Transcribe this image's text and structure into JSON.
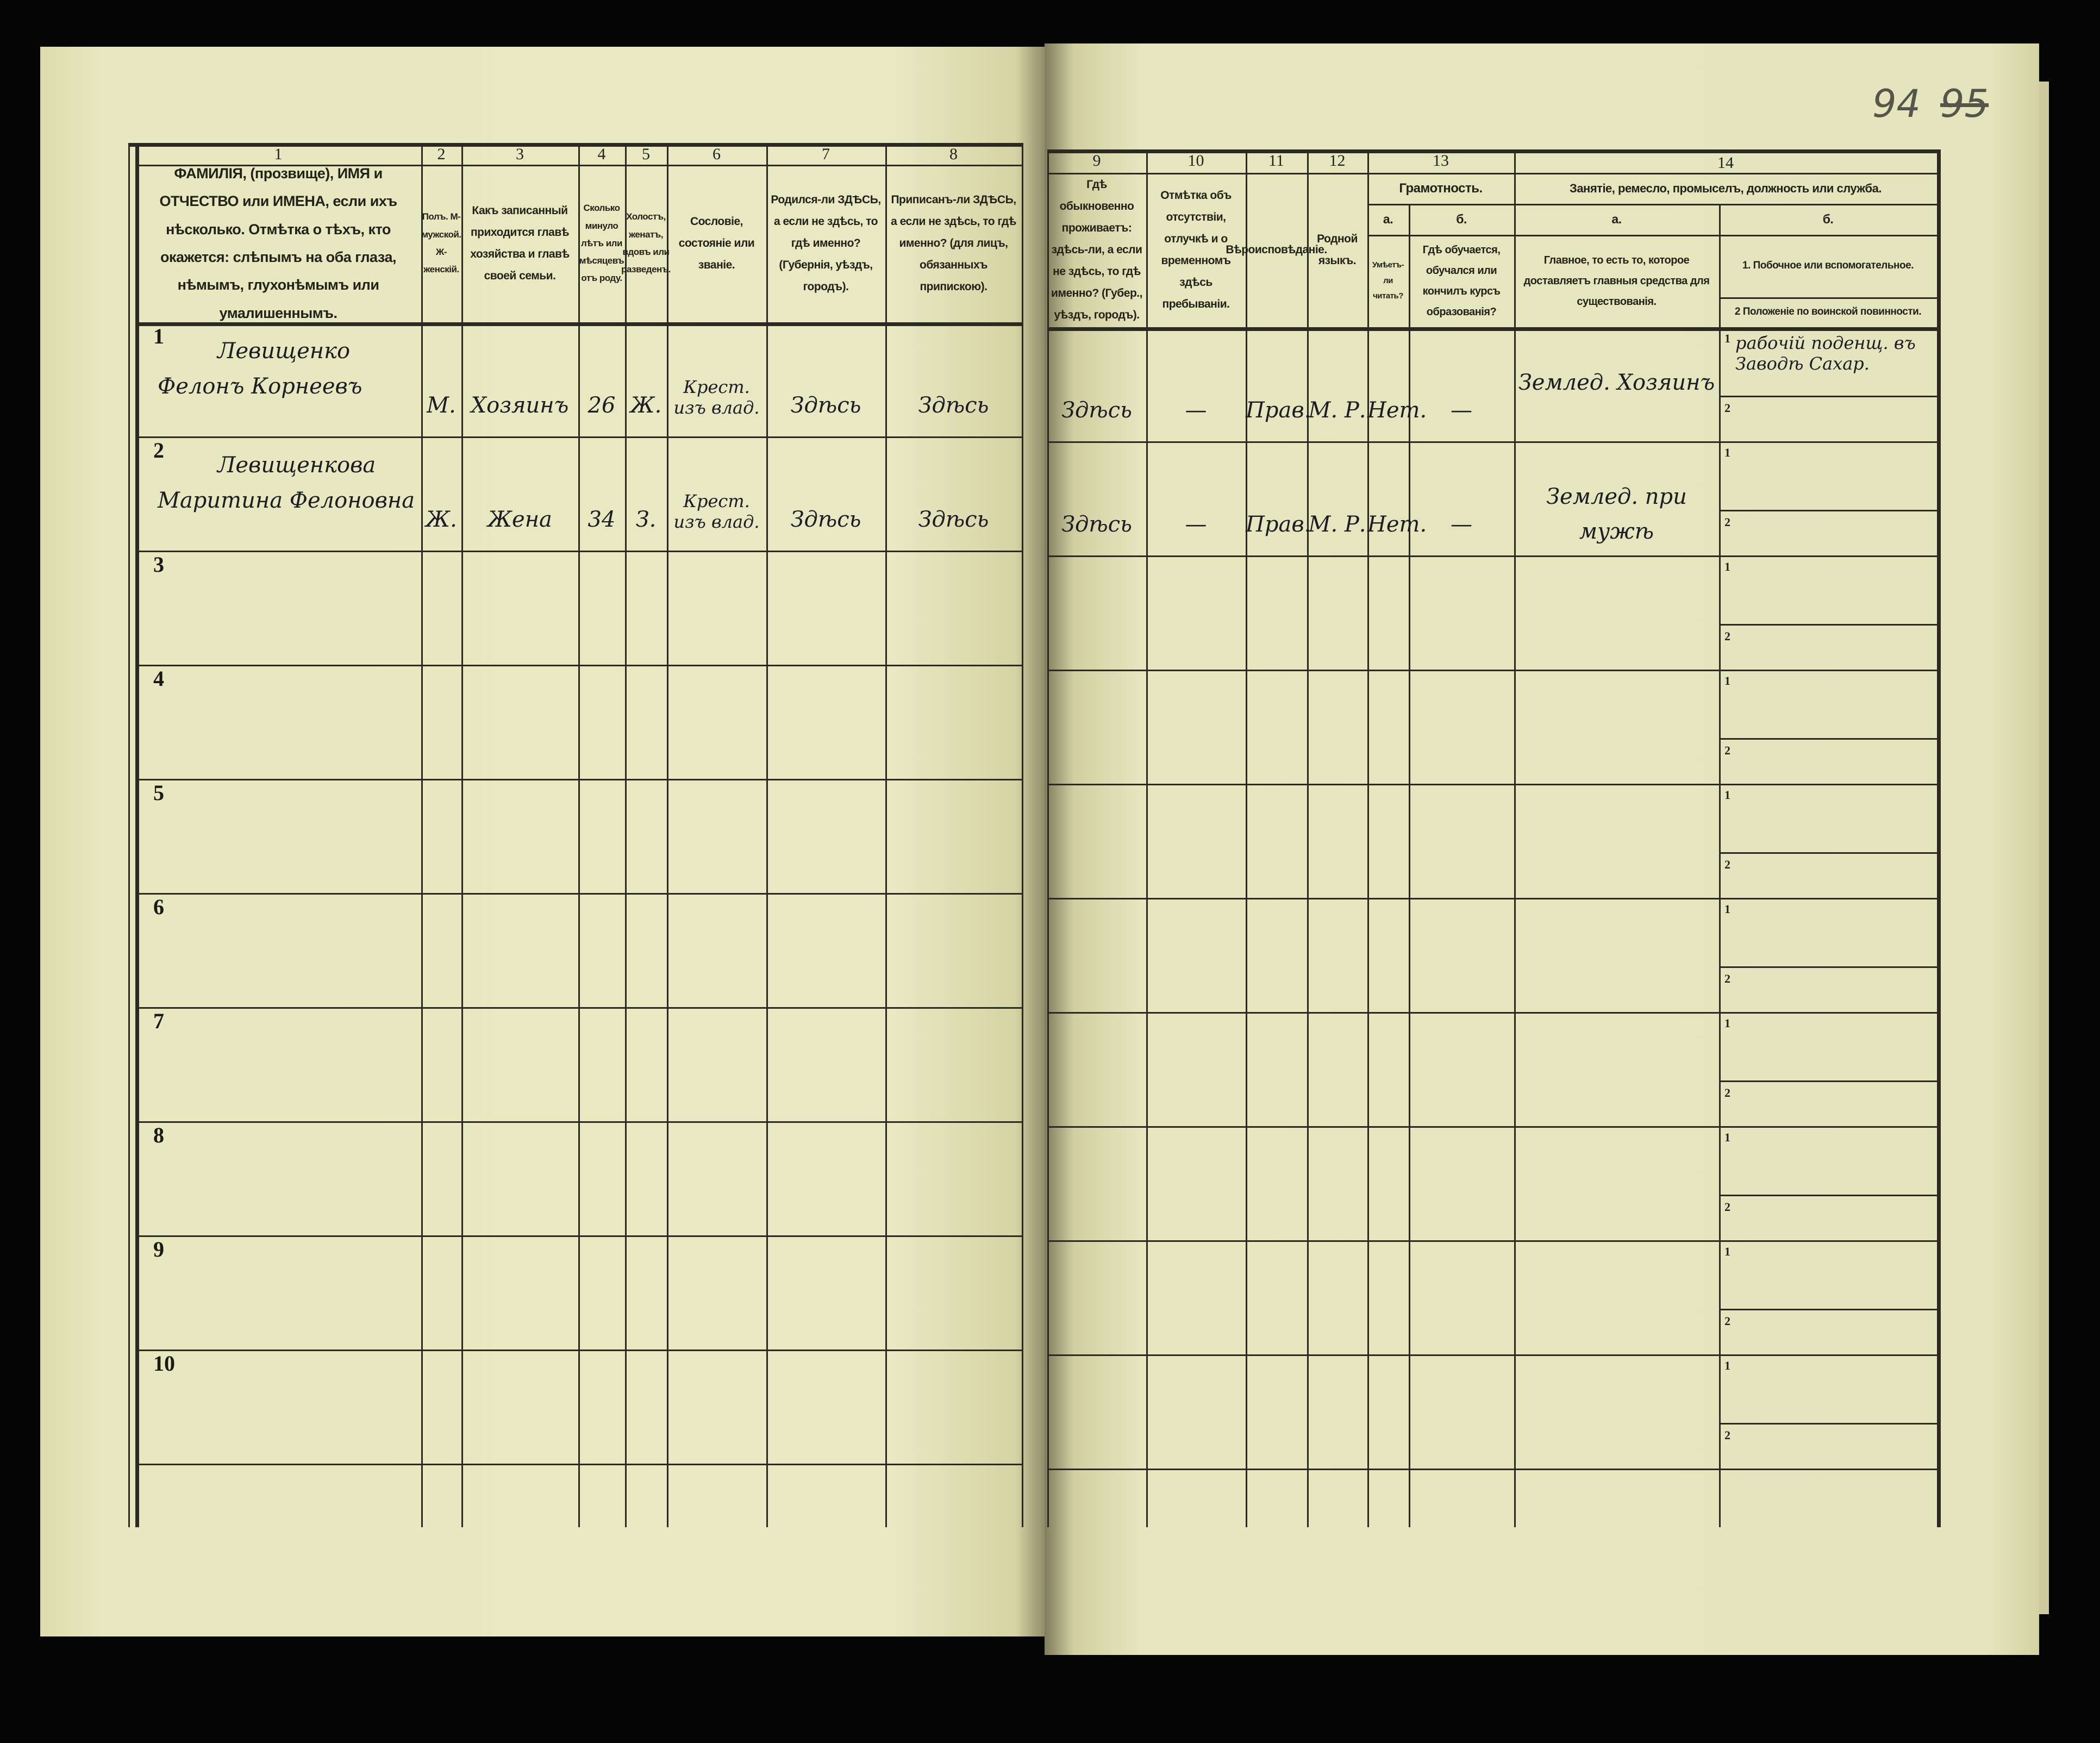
{
  "page_number": {
    "current": "94",
    "crossed": "95"
  },
  "columns": [
    {
      "num": "1",
      "text": "ФАМИЛІЯ, (прозвище), ИМЯ и ОТЧЕСТВО или ИМЕНА, если ихъ нѣсколько. Отмѣтка о тѣхъ, кто окажется: слѣпымъ на оба глаза, нѣмымъ, глухонѣмымъ или умалишеннымъ."
    },
    {
      "num": "2",
      "text": "Полъ. М-мужской. Ж-женскій."
    },
    {
      "num": "3",
      "text": "Какъ записанный приходится главѣ хозяйства и главѣ своей семьи."
    },
    {
      "num": "4",
      "text": "Сколько минуло лѣтъ или мѣсяцевъ отъ роду."
    },
    {
      "num": "5",
      "text": "Холостъ, женатъ, вдовъ или разведенъ."
    },
    {
      "num": "6",
      "text": "Сословіе, состояніе или званіе."
    },
    {
      "num": "7",
      "text": "Родился-ли ЗДѢСЬ, а если не здѣсь, то гдѣ именно? (Губернія, уѣздъ, городъ)."
    },
    {
      "num": "8",
      "text": "Приписанъ-ли ЗДѢСЬ, а если не здѣсь, то гдѣ именно? (для лицъ, обязанныхъ припискою)."
    },
    {
      "num": "9",
      "text": "Гдѣ обыкновенно проживаетъ: здѣсь-ли, а если не здѣсь, то гдѣ именно? (Губер., уѣздъ, городъ)."
    },
    {
      "num": "10",
      "text": "Отмѣтка объ отсутствіи, отлучкѣ и о временномъ здѣсь пребываніи."
    },
    {
      "num": "11",
      "text": "Вѣроисповѣданіе."
    },
    {
      "num": "12",
      "text": "Родной языкъ."
    }
  ],
  "col13": {
    "num": "13",
    "title": "Грамотность.",
    "a_label": "а.",
    "a_text": "Умѣетъ-ли читать?",
    "b_label": "б.",
    "b_text": "Гдѣ обучается, обучался или кончилъ курсъ образованія?"
  },
  "col14": {
    "num": "14",
    "title": "Занятіе, ремесло, промыселъ, должность или служба.",
    "a_label": "а.",
    "a_text": "Главное, то есть то, которое доставляетъ главныя средства для существованія.",
    "b_label": "б.",
    "b1_text": "1. Побочное или вспомогательное.",
    "b2_text": "2 Положеніе по воинской повинности."
  },
  "sub_labels": [
    "1",
    "2"
  ],
  "rows": [
    {
      "no": "1",
      "surname": "Левищенко",
      "name": "Фелонъ Корнеевъ",
      "sex": "М.",
      "relation": "Хозяинъ",
      "age": "26",
      "marital": "Ж.",
      "estate": "Крест. изъ влад.",
      "born": "Здѣсь",
      "registered": "Здѣсь",
      "residence": "Здѣсь",
      "absence": "—",
      "religion": "Прав.",
      "language": "М. Р.",
      "literacy": "Нет.",
      "education": "—",
      "occupation_main": "Землед. Хозяинъ",
      "occupation_side": "рабочій поденщ. въ Заводѣ Сахар.",
      "military": ""
    },
    {
      "no": "2",
      "surname": "Левищенкова",
      "name": "Маритина Фелоновна",
      "sex": "Ж.",
      "relation": "Жена",
      "age": "34",
      "marital": "З.",
      "estate": "Крест. изъ влад.",
      "born": "Здѣсь",
      "registered": "Здѣсь",
      "residence": "Здѣсь",
      "absence": "—",
      "religion": "Прав.",
      "language": "М. Р.",
      "literacy": "Нет.",
      "education": "—",
      "occupation_main": "Землед. при мужѣ",
      "occupation_side": "",
      "military": ""
    },
    {
      "no": "3"
    },
    {
      "no": "4"
    },
    {
      "no": "5"
    },
    {
      "no": "6"
    },
    {
      "no": "7"
    },
    {
      "no": "8"
    },
    {
      "no": "9"
    },
    {
      "no": "10"
    }
  ]
}
